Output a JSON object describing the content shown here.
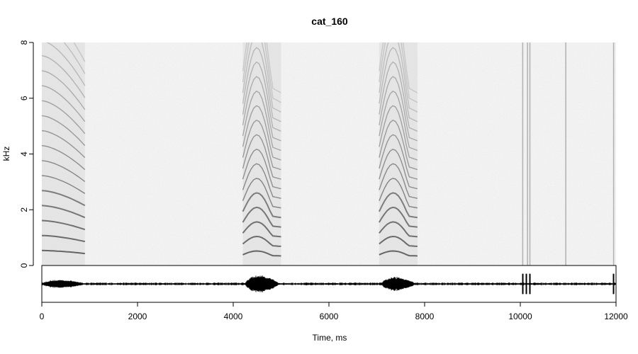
{
  "chart_data": {
    "type": "spectrogram",
    "title": "cat_160",
    "xlabel": "Time, ms",
    "ylabel": "kHz",
    "xlim": [
      0,
      12000
    ],
    "ylim": [
      0,
      8
    ],
    "x_ticks": [
      0,
      2000,
      4000,
      6000,
      8000,
      10000,
      12000
    ],
    "y_ticks": [
      0,
      2,
      4,
      6,
      8
    ],
    "x_tick_labels": [
      "0",
      "2000",
      "4000",
      "6000",
      "8000",
      "10000",
      "12000"
    ],
    "y_tick_labels": [
      "0",
      "2",
      "4",
      "6",
      "8"
    ],
    "colormap": "grayscale",
    "background_color": "#f2f2f2",
    "mark_color": "#3a3a3a",
    "calls": [
      {
        "start_ms": 0,
        "end_ms": 900,
        "f0_khz": 0.43,
        "harmonics": 17,
        "sweep": "falling"
      },
      {
        "start_ms": 4200,
        "end_ms": 5000,
        "f0_khz": 0.43,
        "harmonics": 18,
        "sweep": "rising"
      },
      {
        "start_ms": 7050,
        "end_ms": 7850,
        "f0_khz": 0.43,
        "harmonics": 18,
        "sweep": "rising"
      }
    ],
    "transients_ms": [
      10050,
      10150,
      10200,
      10950,
      11950
    ],
    "oscillogram": {
      "bursts": [
        {
          "start_ms": 0,
          "end_ms": 900,
          "amplitude": 0.45
        },
        {
          "start_ms": 4250,
          "end_ms": 4950,
          "amplitude": 0.95
        },
        {
          "start_ms": 7100,
          "end_ms": 7800,
          "amplitude": 0.75
        }
      ],
      "clicks_ms": [
        10050,
        10130,
        10200,
        11950
      ],
      "noise_amplitude": 0.08
    }
  }
}
